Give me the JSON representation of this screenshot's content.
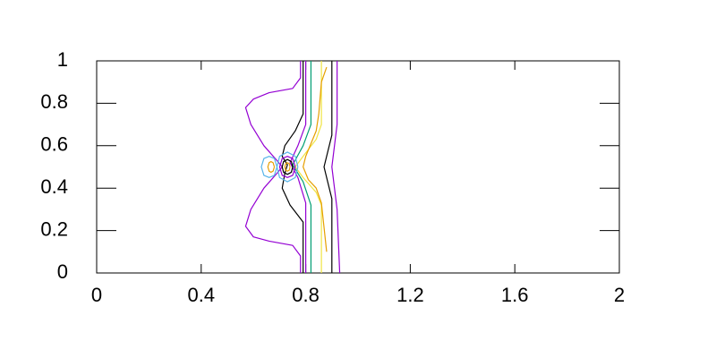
{
  "chart_data": {
    "type": "contour",
    "xlim": [
      0,
      2
    ],
    "ylim": [
      0,
      1
    ],
    "xticks": [
      0,
      0.4,
      0.8,
      1.2,
      1.6,
      2
    ],
    "yticks": [
      0,
      0.2,
      0.4,
      0.6,
      0.8,
      1
    ],
    "series": [
      {
        "color": "#9400d3",
        "x": [
          0.78,
          0.78,
          0.75,
          0.66,
          0.6,
          0.57,
          0.59,
          0.64,
          0.69,
          0.71,
          0.69,
          0.64,
          0.59,
          0.57,
          0.6,
          0.66,
          0.75,
          0.78,
          0.78
        ],
        "y": [
          1,
          0.92,
          0.87,
          0.85,
          0.82,
          0.78,
          0.7,
          0.6,
          0.53,
          0.5,
          0.47,
          0.4,
          0.3,
          0.22,
          0.17,
          0.15,
          0.13,
          0.08,
          0
        ]
      },
      {
        "color": "#000000",
        "x": [
          0.79,
          0.79,
          0.76,
          0.72,
          0.71,
          0.73,
          0.72,
          0.71,
          0.74,
          0.79,
          0.79
        ],
        "y": [
          1,
          0.75,
          0.67,
          0.6,
          0.55,
          0.51,
          0.47,
          0.4,
          0.32,
          0.24,
          0
        ]
      },
      {
        "color": "#9400d3",
        "x": [
          0.8,
          0.8,
          0.77,
          0.74,
          0.77,
          0.8,
          0.8
        ],
        "y": [
          1,
          0.7,
          0.6,
          0.52,
          0.45,
          0.33,
          0
        ]
      },
      {
        "color": "#009e73",
        "x": [
          0.82,
          0.82,
          0.79,
          0.75,
          0.79,
          0.82,
          0.82
        ],
        "y": [
          1,
          0.7,
          0.6,
          0.51,
          0.43,
          0.32,
          0
        ]
      },
      {
        "color": "#f0e442",
        "x": [
          0.86,
          0.86,
          0.84,
          0.79,
          0.76,
          0.79,
          0.84,
          0.86,
          0.86
        ],
        "y": [
          1,
          0.7,
          0.63,
          0.55,
          0.5,
          0.45,
          0.38,
          0.32,
          0
        ]
      },
      {
        "color": "#e69f00",
        "x": [
          0.88,
          0.86,
          0.85,
          0.84,
          0.8,
          0.79,
          0.81,
          0.84,
          0.86,
          0.88
        ],
        "y": [
          0.97,
          0.9,
          0.75,
          0.67,
          0.55,
          0.5,
          0.44,
          0.4,
          0.33,
          0.1
        ]
      },
      {
        "color": "#000000",
        "x": [
          0.9,
          0.9,
          0.88,
          0.87,
          0.88,
          0.9,
          0.9
        ],
        "y": [
          1,
          0.65,
          0.55,
          0.5,
          0.45,
          0.35,
          0
        ]
      },
      {
        "color": "#9400d3",
        "x": [
          0.92,
          0.92,
          0.91,
          0.9,
          0.91,
          0.92,
          0.93
        ],
        "y": [
          1,
          0.7,
          0.6,
          0.5,
          0.4,
          0.3,
          0
        ]
      },
      {
        "color": "#56b4e9",
        "x": [
          0.69,
          0.68,
          0.66,
          0.64,
          0.63,
          0.64,
          0.66,
          0.68,
          0.69
        ],
        "y": [
          0.5,
          0.54,
          0.55,
          0.54,
          0.5,
          0.46,
          0.45,
          0.46,
          0.5
        ]
      },
      {
        "color": "#e69f00",
        "x": [
          0.68,
          0.675,
          0.667,
          0.66,
          0.655,
          0.66,
          0.667,
          0.675,
          0.68
        ],
        "y": [
          0.5,
          0.52,
          0.525,
          0.52,
          0.5,
          0.48,
          0.475,
          0.48,
          0.5
        ]
      },
      {
        "color": "#56b4e9",
        "x": [
          0.77,
          0.76,
          0.73,
          0.7,
          0.69,
          0.7,
          0.73,
          0.76,
          0.77
        ],
        "y": [
          0.5,
          0.55,
          0.57,
          0.55,
          0.5,
          0.45,
          0.43,
          0.45,
          0.5
        ]
      },
      {
        "color": "#9400d3",
        "x": [
          0.76,
          0.75,
          0.73,
          0.71,
          0.7,
          0.71,
          0.73,
          0.75,
          0.76
        ],
        "y": [
          0.5,
          0.54,
          0.55,
          0.54,
          0.5,
          0.46,
          0.45,
          0.46,
          0.5
        ]
      },
      {
        "color": "#000000",
        "x": [
          0.75,
          0.745,
          0.73,
          0.715,
          0.71,
          0.715,
          0.73,
          0.745,
          0.75
        ],
        "y": [
          0.5,
          0.525,
          0.535,
          0.525,
          0.5,
          0.475,
          0.465,
          0.475,
          0.5
        ]
      },
      {
        "color": "#e69f00",
        "x": [
          0.74,
          0.737,
          0.73,
          0.723,
          0.72,
          0.723,
          0.73,
          0.737,
          0.74
        ],
        "y": [
          0.5,
          0.515,
          0.52,
          0.515,
          0.5,
          0.485,
          0.48,
          0.485,
          0.5
        ]
      }
    ]
  }
}
